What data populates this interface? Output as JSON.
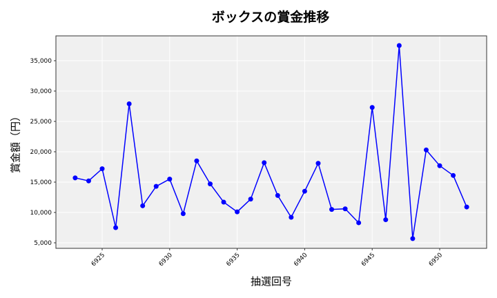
{
  "chart_data": {
    "type": "line",
    "title": "ボックスの賞金推移",
    "xlabel": "抽選回号",
    "ylabel": "賞金額（円）",
    "x": [
      6923,
      6924,
      6925,
      6926,
      6927,
      6928,
      6929,
      6930,
      6931,
      6932,
      6933,
      6934,
      6935,
      6936,
      6937,
      6938,
      6939,
      6940,
      6941,
      6942,
      6943,
      6944,
      6945,
      6946,
      6947,
      6948,
      6949,
      6950,
      6951,
      6952
    ],
    "series": [
      {
        "name": "ボックス",
        "color": "#0000ff",
        "values": [
          15700,
          15200,
          17200,
          7500,
          27900,
          11100,
          14300,
          15500,
          9800,
          18500,
          14700,
          11700,
          10100,
          12200,
          18200,
          12800,
          9200,
          13500,
          18100,
          10500,
          10600,
          8300,
          27300,
          8800,
          37500,
          5700,
          20300,
          17700,
          16100,
          10900
        ]
      }
    ],
    "xticks": [
      6925,
      6930,
      6935,
      6940,
      6945,
      6950
    ],
    "xtick_labels": [
      "6925",
      "6930",
      "6935",
      "6940",
      "6945",
      "6950"
    ],
    "yticks": [
      5000,
      10000,
      15000,
      20000,
      25000,
      30000,
      35000
    ],
    "ytick_labels": [
      "5,000",
      "10,000",
      "15,000",
      "20,000",
      "25,000",
      "30,000",
      "35,000"
    ],
    "xlim": [
      6921.6,
      6953.4
    ],
    "ylim": [
      4000,
      39000
    ],
    "grid": true,
    "legend": false,
    "background": "#f0f0f0"
  }
}
